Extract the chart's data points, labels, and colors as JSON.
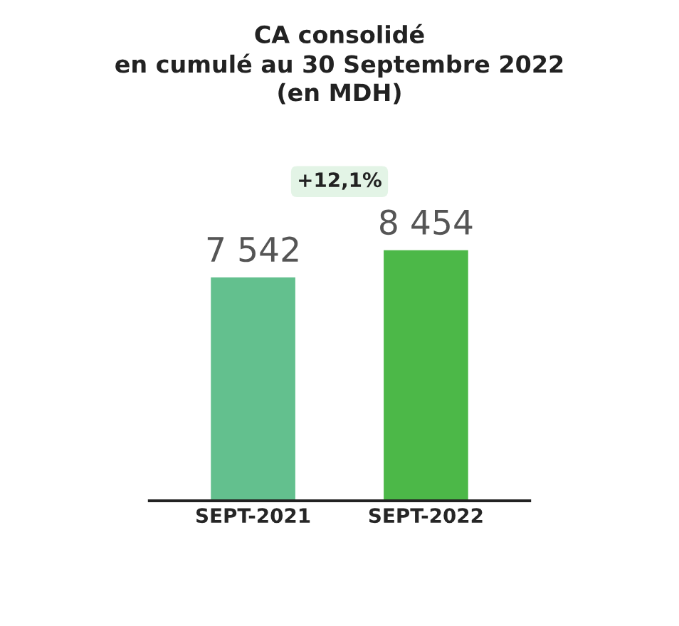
{
  "chart_data": {
    "type": "bar",
    "title": "CA consolidé\nen cumulé au 30 Septembre 2022\n(en MDH)",
    "categories": [
      "SEPT-2021",
      "SEPT-2022"
    ],
    "values": [
      7542,
      8454
    ],
    "colors": [
      "#63c08e",
      "#4cb848"
    ],
    "value_labels": [
      "7 542",
      "8 454"
    ],
    "annotations": [
      "+12,1%"
    ]
  }
}
